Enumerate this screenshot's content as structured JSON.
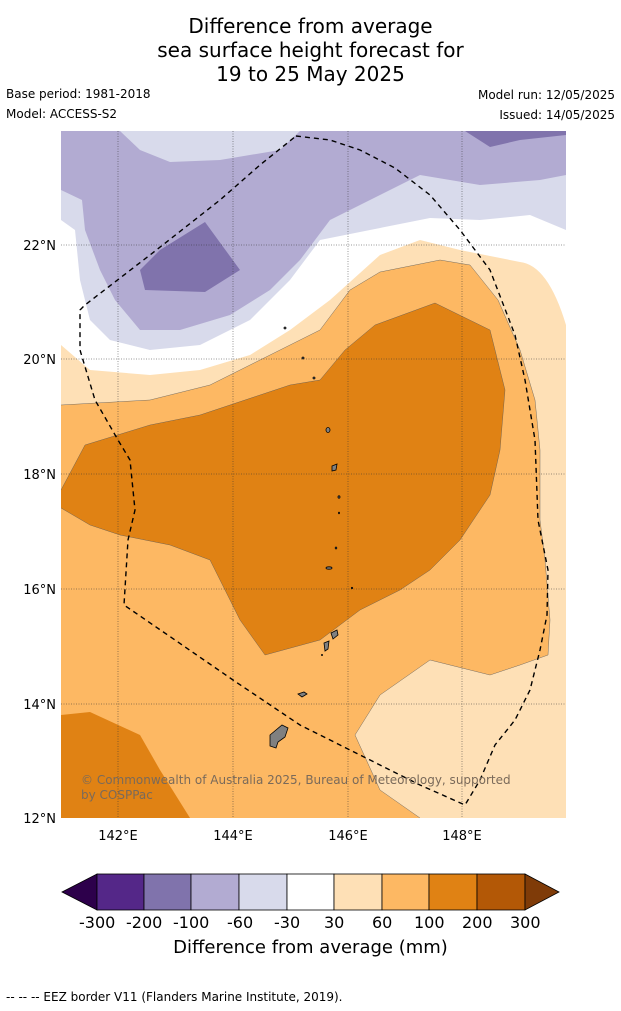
{
  "title": {
    "line1": "Difference from average",
    "line2": "sea surface height forecast for",
    "line3": "19 to 25 May 2025"
  },
  "meta": {
    "base_period": "Base period: 1981-2018",
    "model": "Model: ACCESS-S2",
    "model_run": "Model run: 12/05/2025",
    "issued": "Issued: 14/05/2025"
  },
  "map": {
    "lat_labels": [
      "22°N",
      "20°N",
      "18°N",
      "16°N",
      "14°N",
      "12°N"
    ],
    "lon_labels": [
      "142°E",
      "144°E",
      "146°E",
      "148°E"
    ],
    "copyright_line1": "© Commonwealth of Australia 2025, Bureau of Meteorology, supported",
    "copyright_line2": "by COSPPac",
    "border_style": "dashed",
    "land_color": "#808080"
  },
  "colorbar": {
    "ticks": [
      "-300",
      "-200",
      "-100",
      "-60",
      "-30",
      "30",
      "60",
      "100",
      "200",
      "300"
    ],
    "title": "Difference from average (mm)",
    "colors": {
      "below_min": "#2d004b",
      "c1": "#542788",
      "c2": "#8073ac",
      "c3": "#b2abd2",
      "c4": "#d8daeb",
      "c5": "#ffffff",
      "c6": "#fee0b6",
      "c7": "#fdb863",
      "c8": "#e08214",
      "c9": "#b35806",
      "above_max": "#7f3b08"
    }
  },
  "footer": "--  --  -- EEZ border V11 (Flanders Marine Institute, 2019)."
}
